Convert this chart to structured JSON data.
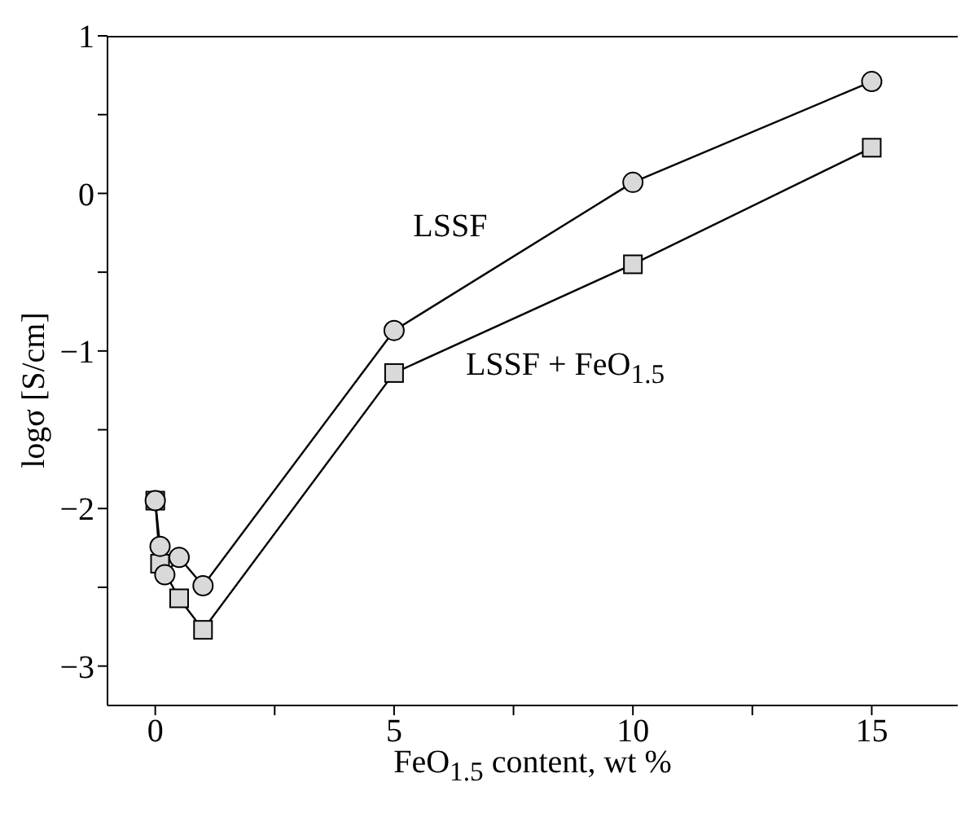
{
  "chart_data": {
    "type": "line",
    "xlabel": "FeO$_{1.5}$ content, wt %",
    "ylabel": "logσ [S/cm]",
    "xlim": [
      -1,
      16.8
    ],
    "xticks": [
      0,
      {
        "value": 2.5,
        "label": null
      },
      5,
      {
        "value": 7.5,
        "label": null
      },
      10,
      {
        "value": 12.5,
        "label": null
      },
      15
    ],
    "ylim": [
      -3.25,
      1
    ],
    "yticks": [
      -3,
      {
        "value": -2.5,
        "label": null
      },
      -2,
      {
        "value": -1.5,
        "label": null
      },
      -1,
      {
        "value": -0.5,
        "label": null
      },
      0,
      {
        "value": 0.5,
        "label": null
      },
      1
    ],
    "grid": false,
    "line_style": "solid",
    "series": [
      {
        "name": "LSSF",
        "color": "#000000",
        "marker": "circle",
        "x": [
          0,
          0.1,
          0.2,
          0.5,
          1,
          5,
          10,
          15
        ],
        "values": [
          -1.95,
          -2.24,
          -2.42,
          -2.31,
          -2.49,
          -0.87,
          0.07,
          0.71
        ]
      },
      {
        "name": "LSSF + FeO$_{1.5}$",
        "color": "#000000",
        "marker": "square",
        "x": [
          0,
          0.1,
          0.5,
          1,
          5,
          10,
          15
        ],
        "values": [
          -1.95,
          -2.35,
          -2.57,
          -2.77,
          -1.14,
          -0.45,
          0.29
        ]
      }
    ]
  }
}
